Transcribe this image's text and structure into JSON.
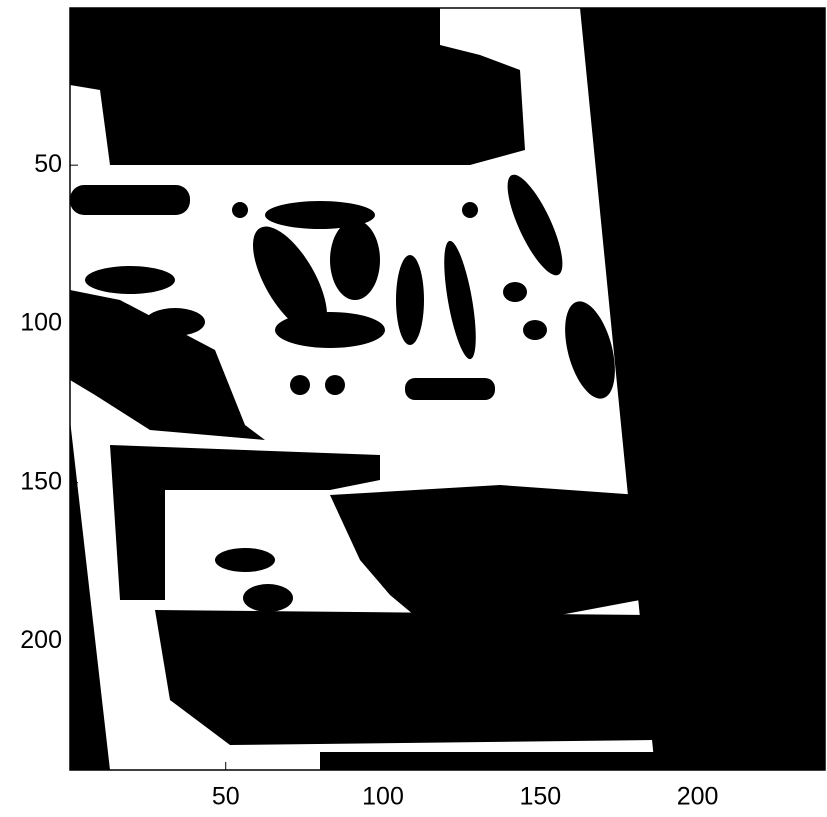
{
  "chart_data": {
    "type": "image",
    "xlim": [
      0.5,
      240.5
    ],
    "ylim": [
      0.5,
      240.5
    ],
    "xticks": [
      50,
      100,
      150,
      200
    ],
    "yticks": [
      50,
      100,
      150,
      200
    ],
    "y_reversed": true
  }
}
